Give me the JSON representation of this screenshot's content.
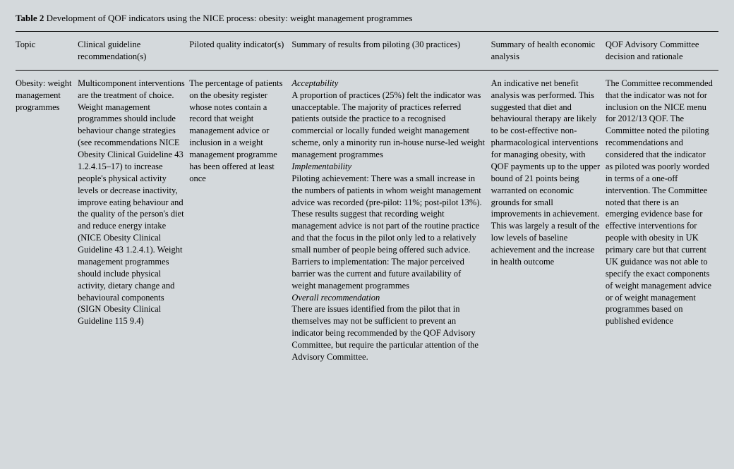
{
  "title": {
    "label": "Table 2",
    "text": " Development of QOF indicators using the NICE process: obesity: weight management programmes"
  },
  "headers": {
    "topic": "Topic",
    "clinical": "Clinical guideline recommendation(s)",
    "piloted": "Piloted quality indicator(s)",
    "summary": "Summary of results from piloting (30 practices)",
    "health": "Summary of health economic analysis",
    "qof": "QOF Advisory Committee decision and rationale"
  },
  "row": {
    "topic": "Obesity: weight management programmes",
    "clinical": "Multicomponent interventions are the treatment of choice. Weight management programmes should include behaviour change strategies (see recommendations NICE Obesity Clinical Guideline 43 1.2.4.15–17) to increase people's physical activity levels or decrease inactivity, improve eating behaviour and the quality of the person's diet and reduce energy intake (NICE Obesity Clinical Guideline 43 1.2.4.1). Weight management programmes should include physical activity, dietary change and behavioural components (SIGN Obesity Clinical Guideline 115 9.4)",
    "piloted": "The percentage of patients on the obesity register whose notes contain a record that weight management advice or inclusion in a weight management programme has been offered at least once",
    "summary_h1": "Acceptability",
    "summary_p1": "A proportion of practices (25%) felt the indicator was unacceptable. The majority of practices referred patients outside the practice to a recognised commercial or locally funded weight management scheme, only a minority run in-house nurse-led weight management programmes",
    "summary_h2": "Implementability",
    "summary_p2": "Piloting achievement: There was a small increase in the numbers of patients in whom weight management advice was recorded (pre-pilot: 11%; post-pilot 13%). These results suggest that recording weight management advice is not part of the routine practice and that the focus in the pilot only led to a relatively small number of people being offered such advice. Barriers to implementation: The major perceived barrier was the current and future availability of weight management programmes",
    "summary_h3": "Overall recommendation",
    "summary_p3": "There are issues identified from the pilot that in themselves may not be sufficient to prevent an indicator being recommended by the QOF Advisory Committee, but require the particular attention of the Advisory Committee.",
    "health": "An indicative net benefit analysis was performed. This suggested that diet and behavioural therapy are likely to be cost-effective non-pharmacological interventions for managing obesity, with QOF payments up to the upper bound of 21 points being warranted on economic grounds for small improvements in achievement. This was largely a result of the low levels of baseline achievement and the increase in health outcome",
    "qof": "The Committee recommended that the indicator was not for inclusion on the NICE menu for 2012/13 QOF. The Committee noted the piloting recommendations and considered that the indicator as piloted was poorly worded in terms of a one-off intervention. The Committee noted that there is an emerging evidence base for effective interventions for people with obesity in UK primary care but that current UK guidance was not able to specify the exact components of weight management advice or of weight management programmes based on published evidence"
  },
  "style": {
    "background_color": "#d4d9dc",
    "text_color": "#000000",
    "border_color": "#000000",
    "font_family": "Georgia, serif",
    "body_font_size": 12.5,
    "title_font_size": 13,
    "line_height": 1.35
  }
}
